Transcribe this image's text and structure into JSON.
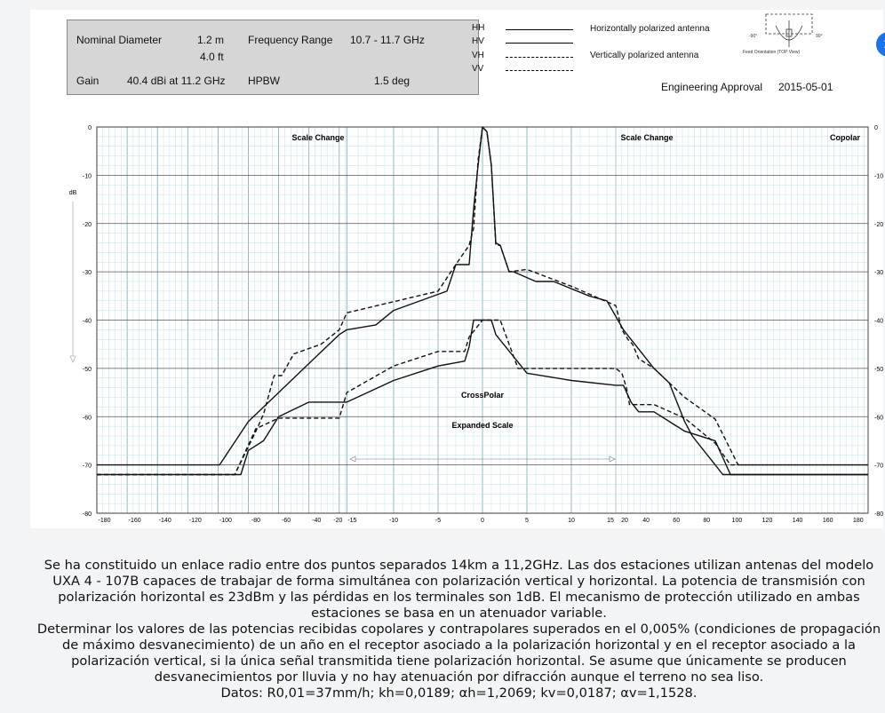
{
  "spec": {
    "nominal_diameter_label": "Nominal Diameter",
    "nominal_diameter_m": "1.2 m",
    "nominal_diameter_ft": "4.0 ft",
    "frequency_label": "Frequency Range",
    "frequency_value": "10.7 - 11.7 GHz",
    "gain_label": "Gain",
    "gain_value": "40.4 dBi at 11.2 GHz",
    "hpbw_label": "HPBW",
    "hpbw_value": "1.5 deg"
  },
  "legend": {
    "codes": [
      "HH",
      "HV",
      "VH",
      "VV"
    ],
    "solid_label": "Horizontally polarized antenna",
    "dashed_label": "Vertically polarized antenna"
  },
  "approval": {
    "label": "Engineering Approval",
    "date": "2015-05-01"
  },
  "feed": {
    "caption": "Feed Orientation (TOP View)",
    "left_angle": "-90°",
    "right_angle": "90°"
  },
  "close_icon": "×",
  "chart_data": {
    "type": "line",
    "ylabel_left": "dB",
    "ylabel_right": "dB",
    "ylim": [
      -80,
      0
    ],
    "yticks": [
      0,
      -10,
      -20,
      -30,
      -40,
      -50,
      -60,
      -70,
      -80
    ],
    "x_tick_labels": [
      "-180",
      "-160",
      "-140",
      "-120",
      "-100",
      "-80",
      "-60",
      "-40",
      "-20",
      "-15",
      "-10",
      "-5",
      "0",
      "5",
      "10",
      "15",
      "20",
      "40",
      "60",
      "80",
      "100",
      "120",
      "140",
      "160",
      "180"
    ],
    "x_scale_note": "piecewise: outer regions 20 deg/major division, central region -15..15 deg at 5 deg/major division",
    "grid": true,
    "annotations": {
      "scale_change": "Scale Change",
      "copolar": "Copolar",
      "crosspolar": "CrossPolar",
      "expanded_scale": "Expanded Scale"
    },
    "series": [
      {
        "style": "solid",
        "x": [
          -180,
          -99,
          -80,
          -60,
          -40,
          -20,
          -15,
          -12,
          -10,
          -4,
          -3,
          -1.5,
          -1,
          -0.5,
          0,
          0.5,
          1,
          1.5,
          2,
          3,
          3.5,
          6,
          8,
          12,
          14,
          20,
          40,
          50,
          60,
          65,
          80,
          85,
          100,
          180
        ],
        "y": [
          -70,
          -70,
          -61,
          -55,
          -49,
          -43,
          -42,
          -41,
          -38,
          -34,
          -28.5,
          -28.5,
          -17,
          -8,
          0,
          -1,
          -8,
          -24,
          -24.5,
          -30,
          -30,
          -32,
          -32,
          -35,
          -36,
          -42,
          -50,
          -53,
          -61,
          -64,
          -70,
          -72,
          -72,
          -72
        ]
      },
      {
        "style": "solid",
        "x": [
          -180,
          -85,
          -80,
          -70,
          -60,
          -40,
          -15,
          -10,
          -5,
          -2,
          -1.5,
          -1,
          0,
          1,
          1.5,
          5,
          10,
          15,
          20,
          25,
          30,
          40,
          60,
          80,
          90,
          180
        ],
        "y": [
          -72,
          -72,
          -67,
          -65,
          -60,
          -57,
          -57,
          -52.5,
          -49.5,
          -48.5,
          -45.5,
          -40,
          -40,
          -40,
          -43,
          -51,
          -52.5,
          -53.5,
          -53.5,
          -57,
          -59,
          -59,
          -63,
          -65,
          -72,
          -72
        ]
      },
      {
        "style": "dashed",
        "x": [
          -180,
          -89,
          -75,
          -70,
          -63,
          -58,
          -50,
          -32,
          -20,
          -15,
          -5,
          -3,
          -1.5,
          -1,
          -0.5,
          0,
          0.5,
          1,
          1.5,
          2,
          3,
          5,
          10,
          15,
          19,
          23,
          26,
          30,
          40,
          60,
          80,
          95,
          180
        ],
        "y": [
          -72,
          -72,
          -63,
          -59.5,
          -51.5,
          -51.5,
          -47,
          -45,
          -42,
          -38.5,
          -34,
          -28.5,
          -24.5,
          -21,
          -7,
          0,
          -1,
          -8,
          -24.5,
          -24.5,
          -30,
          -29.5,
          -33,
          -37,
          -42,
          -44,
          -45,
          -48,
          -50,
          -56,
          -60.5,
          -70,
          -70
        ]
      },
      {
        "style": "dashed",
        "x": [
          -180,
          -89,
          -75,
          -60,
          -42,
          -20,
          -15,
          -10,
          -5,
          -2,
          -1.5,
          0,
          2,
          3,
          4,
          5,
          15,
          19,
          22,
          24,
          28,
          32,
          40,
          60,
          80,
          90,
          180
        ],
        "y": [
          -72,
          -72,
          -62.5,
          -60.3,
          -60.3,
          -60.3,
          -55,
          -49.5,
          -46.5,
          -46.5,
          -43.5,
          -40,
          -40,
          -45,
          -50,
          -50,
          -50,
          -51,
          -54,
          -57.5,
          -57.5,
          -57.5,
          -57.5,
          -60.3,
          -65.5,
          -70,
          -70
        ]
      }
    ]
  },
  "problem": {
    "p1": "Se ha constituido un enlace radio entre dos puntos separados 14km a 11,2GHz. Las dos estaciones utilizan antenas del modelo UXA 4 - 107B capaces de trabajar de forma simultánea con polarización vertical y horizontal. La potencia de transmisión con polarización horizontal es 23dBm y las pérdidas en los terminales son 1dB. El mecanismo de protección utilizado en ambas estaciones se basa en un atenuador variable.",
    "p2": "Determinar los valores de las potencias recibidas copolares y contrapolares superados en el 0,005% (condiciones de propagación de máximo desvanecimiento) de un año en el receptor asociado a la polarización horizontal y en el receptor asociado a la polarización vertical, si la única señal transmitida tiene polarización horizontal. Se asume que únicamente se producen desvanecimientos por lluvia y no hay atenuación por difracción aunque el terreno no sea liso.",
    "p3": "Datos: R0,01=37mm/h; kh=0,0189; αh=1,2069; kv=0,0187; αv=1,1528."
  }
}
